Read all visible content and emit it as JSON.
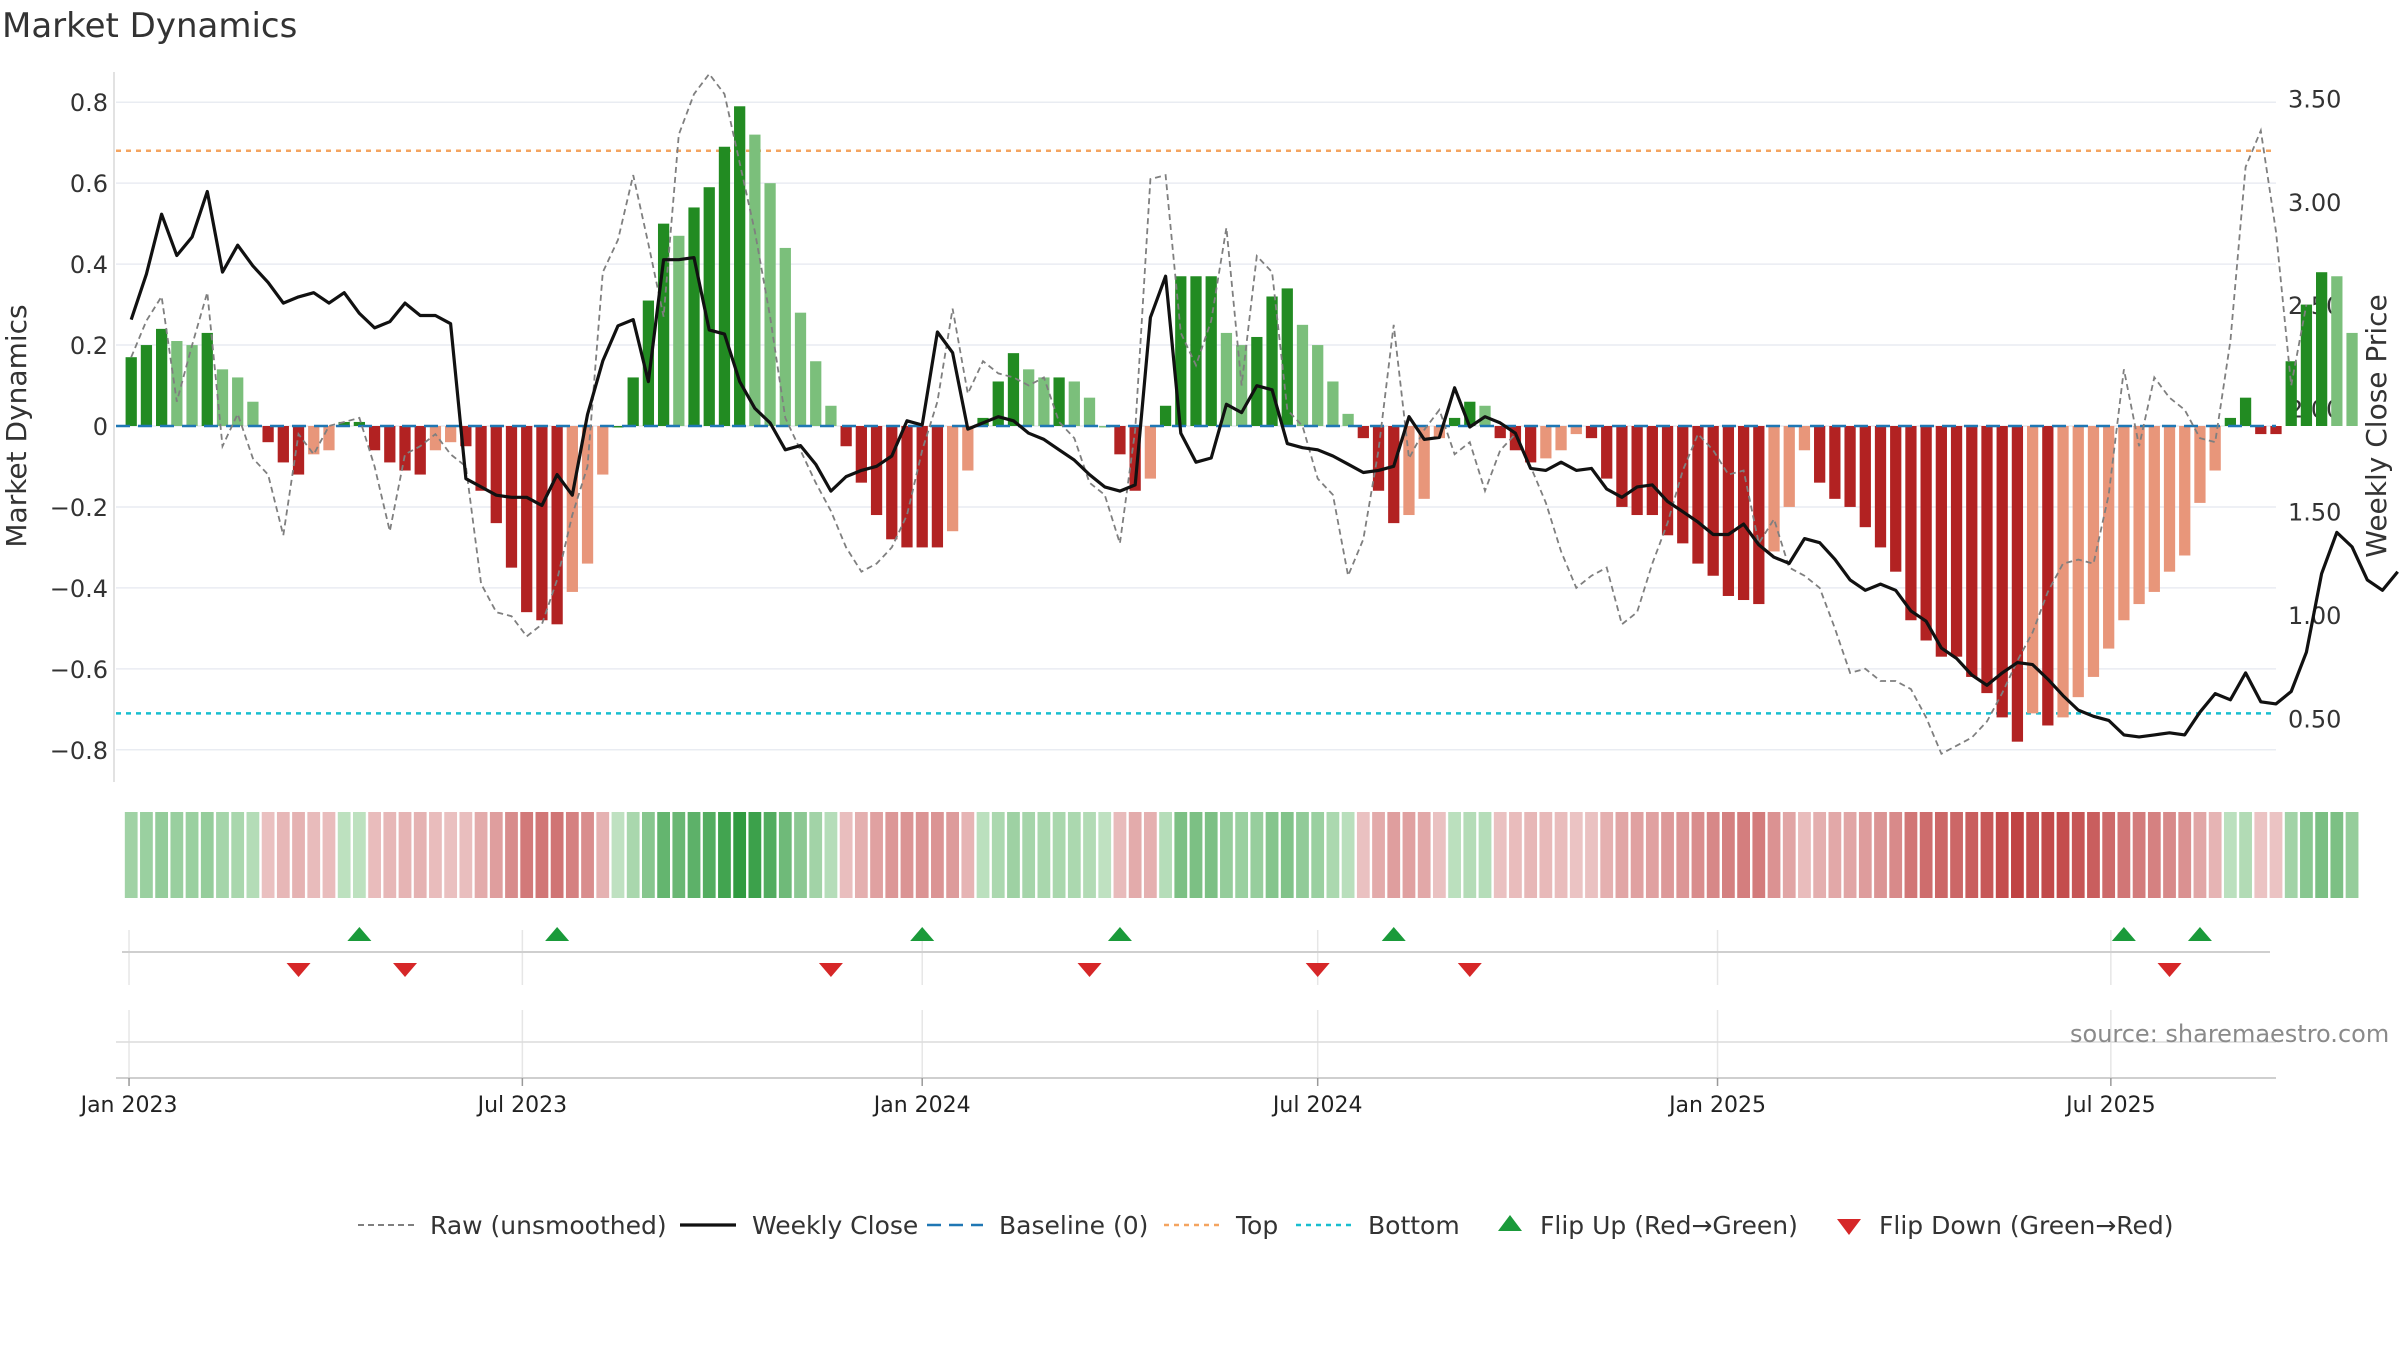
{
  "chart_data": {
    "type": "bar",
    "title": "Market Dynamics",
    "source": "source: sharemaestro.com",
    "ylabel": "Market Dynamics",
    "y2label": "Weekly Close Price",
    "ylim": [
      -0.85,
      0.85
    ],
    "y2lim": [
      0.25,
      3.58
    ],
    "yticks": [
      0.8,
      0.6,
      0.4,
      0.2,
      0,
      -0.2,
      -0.4,
      -0.6,
      -0.8
    ],
    "ytick_labels": [
      "0.8",
      "0.6",
      "0.4",
      "0.2",
      "0",
      "−0.2",
      "−0.4",
      "−0.6",
      "−0.8"
    ],
    "y2ticks": [
      3.5,
      3.0,
      2.5,
      2.0,
      1.5,
      1.0,
      0.5
    ],
    "y2tick_labels": [
      "3.50",
      "3.00",
      "2.50",
      "2.00",
      "1.50",
      "1.00",
      "0.50"
    ],
    "x_range": [
      "2022-12-26",
      "2025-09-15"
    ],
    "xticks": [
      "2023-01-01",
      "2023-07-01",
      "2024-01-01",
      "2024-07-01",
      "2025-01-01",
      "2025-07-01"
    ],
    "xtick_labels": [
      "Jan 2023",
      "Jul 2023",
      "Jan 2024",
      "Jul 2024",
      "Jan 2025",
      "Jul 2025"
    ],
    "top_line": 0.68,
    "bottom_line": -0.71,
    "baseline": 0,
    "colors": {
      "strong_up": "#228B22",
      "weak_up": "#7BBF7B",
      "strong_down": "#B22222",
      "weak_down": "#E8967A",
      "raw": "#7f7f7f",
      "close": "#111111",
      "baseline": "#1f77b4",
      "top": "#F4A460",
      "bottom": "#17becf",
      "flip_up": "#1a9a3a",
      "flip_down": "#d62728"
    },
    "weeks_start": "2023-01-02",
    "series": [
      {
        "name": "Market Dynamics",
        "values": [
          0.17,
          0.2,
          0.24,
          0.21,
          0.2,
          0.23,
          0.14,
          0.12,
          0.06,
          -0.04,
          -0.09,
          -0.12,
          -0.07,
          -0.06,
          0.01,
          0.01,
          -0.06,
          -0.09,
          -0.11,
          -0.12,
          -0.06,
          -0.04,
          -0.05,
          -0.16,
          -0.24,
          -0.35,
          -0.46,
          -0.48,
          -0.49,
          -0.41,
          -0.34,
          -0.12,
          0.0,
          0.12,
          0.31,
          0.5,
          0.47,
          0.54,
          0.59,
          0.69,
          0.79,
          0.72,
          0.6,
          0.44,
          0.28,
          0.16,
          0.05,
          -0.05,
          -0.14,
          -0.22,
          -0.28,
          -0.3,
          -0.3,
          -0.3,
          -0.26,
          -0.11,
          0.02,
          0.11,
          0.18,
          0.14,
          0.12,
          0.12,
          0.11,
          0.07,
          0.0,
          -0.07,
          -0.16,
          -0.13,
          0.05,
          0.37,
          0.37,
          0.37,
          0.23,
          0.2,
          0.22,
          0.32,
          0.34,
          0.25,
          0.2,
          0.11,
          0.03,
          -0.03,
          -0.16,
          -0.24,
          -0.22,
          -0.18,
          -0.03,
          0.02,
          0.06,
          0.05,
          -0.03,
          -0.06,
          -0.09,
          -0.08,
          -0.06,
          -0.02,
          -0.03,
          -0.13,
          -0.2,
          -0.22,
          -0.22,
          -0.27,
          -0.29,
          -0.34,
          -0.37,
          -0.42,
          -0.43,
          -0.44,
          -0.31,
          -0.2,
          -0.06,
          -0.14,
          -0.18,
          -0.2,
          -0.25,
          -0.3,
          -0.36,
          -0.48,
          -0.53,
          -0.57,
          -0.57,
          -0.62,
          -0.66,
          -0.72,
          -0.78,
          -0.71,
          -0.74,
          -0.72,
          -0.67,
          -0.62,
          -0.55,
          -0.48,
          -0.44,
          -0.41,
          -0.36,
          -0.32,
          -0.19,
          -0.11,
          0.02,
          0.07,
          -0.02,
          -0.02,
          0.16,
          0.3,
          0.38,
          0.37,
          0.23
        ]
      },
      {
        "name": "Raw (unsmoothed)",
        "values": [
          0.17,
          0.26,
          0.32,
          0.06,
          0.2,
          0.33,
          -0.05,
          0.03,
          -0.08,
          -0.12,
          -0.27,
          -0.02,
          -0.07,
          0.0,
          0.01,
          0.02,
          -0.1,
          -0.26,
          -0.07,
          -0.05,
          -0.02,
          -0.07,
          -0.1,
          -0.39,
          -0.46,
          -0.47,
          -0.52,
          -0.49,
          -0.38,
          -0.22,
          -0.1,
          0.38,
          0.46,
          0.62,
          0.45,
          0.27,
          0.72,
          0.82,
          0.87,
          0.82,
          0.65,
          0.48,
          0.27,
          0.02,
          -0.06,
          -0.14,
          -0.21,
          -0.3,
          -0.36,
          -0.34,
          -0.3,
          -0.22,
          -0.06,
          0.06,
          0.29,
          0.08,
          0.16,
          0.13,
          0.12,
          0.1,
          0.12,
          0.01,
          -0.03,
          -0.14,
          -0.17,
          -0.29,
          -0.01,
          0.61,
          0.62,
          0.23,
          0.15,
          0.26,
          0.49,
          0.1,
          0.42,
          0.38,
          0.04,
          0.0,
          -0.13,
          -0.17,
          -0.37,
          -0.28,
          -0.06,
          0.25,
          -0.08,
          -0.01,
          0.04,
          -0.07,
          -0.04,
          -0.16,
          -0.06,
          -0.02,
          -0.1,
          -0.19,
          -0.31,
          -0.4,
          -0.37,
          -0.35,
          -0.49,
          -0.46,
          -0.34,
          -0.24,
          -0.11,
          -0.02,
          -0.06,
          -0.12,
          -0.11,
          -0.29,
          -0.23,
          -0.35,
          -0.37,
          -0.4,
          -0.5,
          -0.61,
          -0.6,
          -0.63,
          -0.63,
          -0.65,
          -0.72,
          -0.81,
          -0.79,
          -0.77,
          -0.73,
          -0.66,
          -0.58,
          -0.51,
          -0.41,
          -0.34,
          -0.33,
          -0.34,
          -0.17,
          0.14,
          -0.05,
          0.12,
          0.07,
          0.04,
          -0.03,
          -0.04,
          0.21,
          0.64,
          0.73,
          0.48,
          0.1,
          0.3
        ]
      },
      {
        "name": "Weekly Close",
        "axis": "right",
        "values": [
          2.43,
          2.65,
          2.94,
          2.74,
          2.83,
          3.05,
          2.66,
          2.79,
          2.69,
          2.61,
          2.51,
          2.54,
          2.56,
          2.51,
          2.56,
          2.46,
          2.39,
          2.42,
          2.51,
          2.45,
          2.45,
          2.41,
          1.66,
          1.62,
          1.58,
          1.57,
          1.57,
          1.53,
          1.68,
          1.58,
          1.97,
          2.23,
          2.4,
          2.43,
          2.13,
          2.72,
          2.72,
          2.73,
          2.38,
          2.36,
          2.13,
          2.0,
          1.93,
          1.8,
          1.82,
          1.73,
          1.6,
          1.67,
          1.7,
          1.72,
          1.77,
          1.94,
          1.92,
          2.37,
          2.27,
          1.9,
          1.93,
          1.96,
          1.94,
          1.88,
          1.85,
          1.8,
          1.75,
          1.68,
          1.62,
          1.6,
          1.63,
          2.44,
          2.64,
          1.88,
          1.74,
          1.76,
          2.02,
          1.98,
          2.11,
          2.09,
          1.83,
          1.81,
          1.8,
          1.77,
          1.73,
          1.69,
          1.7,
          1.72,
          1.96,
          1.85,
          1.86,
          2.1,
          1.91,
          1.96,
          1.93,
          1.88,
          1.71,
          1.7,
          1.74,
          1.7,
          1.71,
          1.61,
          1.57,
          1.62,
          1.63,
          1.55,
          1.5,
          1.45,
          1.39,
          1.39,
          1.44,
          1.34,
          1.28,
          1.25,
          1.37,
          1.35,
          1.27,
          1.17,
          1.12,
          1.15,
          1.12,
          1.02,
          0.97,
          0.84,
          0.79,
          0.71,
          0.66,
          0.72,
          0.77,
          0.76,
          0.69,
          0.61,
          0.54,
          0.51,
          0.49,
          0.42,
          0.41,
          0.42,
          0.43,
          0.42,
          0.53,
          0.62,
          0.59,
          0.72,
          0.58,
          0.57,
          0.63,
          0.82,
          1.2,
          1.4,
          1.33,
          1.17,
          1.12,
          1.21
        ]
      }
    ],
    "flips_up": [
      "2023-04-17",
      "2023-07-17",
      "2024-01-01",
      "2024-04-01",
      "2024-08-05",
      "2025-07-07",
      "2025-08-11"
    ],
    "flips_down": [
      "2023-03-20",
      "2023-05-08",
      "2023-11-20",
      "2024-03-18",
      "2024-07-01",
      "2024-09-09",
      "2025-07-28"
    ],
    "legend": {
      "position": "bottom",
      "items": [
        {
          "label": "Raw (unsmoothed)",
          "kind": "dashed-gray"
        },
        {
          "label": "Weekly Close",
          "kind": "solid-black"
        },
        {
          "label": "Baseline (0)",
          "kind": "dashed-blue"
        },
        {
          "label": "Top",
          "kind": "dotted-orange"
        },
        {
          "label": "Bottom",
          "kind": "dotted-cyan"
        },
        {
          "label": "Flip Up (Red→Green)",
          "kind": "triangle-up"
        },
        {
          "label": "Flip Down (Green→Red)",
          "kind": "triangle-down"
        }
      ]
    },
    "grid": true
  }
}
